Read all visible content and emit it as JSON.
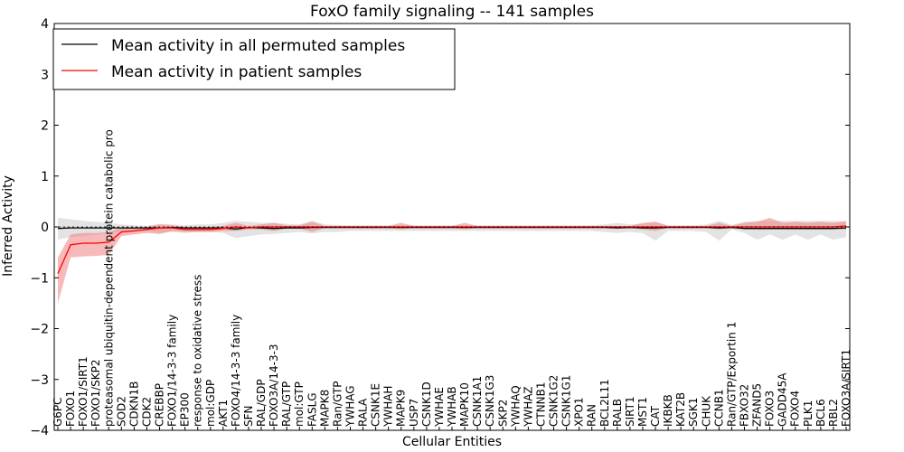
{
  "chart_data": {
    "type": "line",
    "title": "FoxO family signaling -- 141 samples",
    "xlabel": "Cellular Entities",
    "ylabel": "Inferred Activity",
    "ylim": [
      -4,
      4
    ],
    "yticks": [
      4,
      3,
      2,
      1,
      0,
      -1,
      -2,
      -3,
      -4
    ],
    "ytick_labels": [
      "4",
      "3",
      "2",
      "1",
      "0",
      "−1",
      "−2",
      "−3",
      "−4"
    ],
    "legend_location": "upper-left",
    "categories": [
      "G6PC",
      "FOXO1",
      "FOXO1/SIRT1",
      "FOXO1/SKP2",
      "proteasomal ubiquitin-dependent protein catabolic pro",
      "SOD2",
      "CDKN1B",
      "CDK2",
      "CREBBP",
      "FOXO1/14-3-3 family",
      "EP300",
      "response to oxidative stress",
      "mol:GDP",
      "AKT1",
      "FOXO4/14-3-3 family",
      "SFN",
      "RAL/GDP",
      "FOXO3A/14-3-3",
      "RAL/GTP",
      "mol:GTP",
      "FASLG",
      "MAPK8",
      "Ran/GTP",
      "YWHAG",
      "RALA",
      "CSNK1E",
      "YWHAH",
      "MAPK9",
      "USP7",
      "CSNK1D",
      "YWHAE",
      "YWHAB",
      "MAPK10",
      "CSNK1A1",
      "CSNK1G3",
      "SKP2",
      "YWHAQ",
      "YWHAZ",
      "CTNNB1",
      "CSNK1G2",
      "CSNK1G1",
      "XPO1",
      "RAN",
      "BCL2L11",
      "RALB",
      "SIRT1",
      "MST1",
      "CAT",
      "IKBKB",
      "KAT2B",
      "SGK1",
      "CHUK",
      "CCNB1",
      "Ran/GTP/Exportin 1",
      "FBXO32",
      "ZFAND5",
      "FOXO3",
      "GADD45A",
      "FOXO4",
      "PLK1",
      "BCL6",
      "RBL2",
      "FOXO3A/SIRT1"
    ],
    "series": [
      {
        "name": "Mean activity in all permuted samples",
        "color": "#000000",
        "band_color": "#b0b0b0",
        "values": [
          -0.03,
          -0.02,
          -0.02,
          -0.02,
          -0.02,
          -0.02,
          -0.02,
          -0.02,
          -0.02,
          -0.01,
          -0.02,
          -0.02,
          -0.02,
          -0.02,
          -0.04,
          -0.01,
          -0.02,
          -0.03,
          -0.02,
          -0.02,
          -0.01,
          -0.01,
          -0.01,
          -0.01,
          -0.01,
          -0.01,
          -0.01,
          -0.01,
          -0.01,
          -0.01,
          -0.01,
          -0.01,
          -0.01,
          -0.01,
          -0.01,
          -0.01,
          -0.01,
          -0.01,
          -0.01,
          -0.01,
          -0.01,
          -0.01,
          -0.01,
          -0.01,
          -0.02,
          -0.01,
          -0.02,
          -0.02,
          -0.01,
          -0.01,
          -0.01,
          -0.01,
          -0.02,
          -0.01,
          -0.03,
          -0.03,
          -0.03,
          -0.03,
          -0.03,
          -0.03,
          -0.03,
          -0.03,
          -0.02
        ],
        "lower": [
          -0.25,
          -0.2,
          -0.18,
          -0.15,
          -0.12,
          -0.1,
          -0.08,
          -0.08,
          -0.12,
          -0.1,
          -0.12,
          -0.1,
          -0.1,
          -0.12,
          -0.22,
          -0.18,
          -0.15,
          -0.14,
          -0.12,
          -0.1,
          -0.13,
          -0.1,
          -0.1,
          -0.08,
          -0.08,
          -0.08,
          -0.08,
          -0.08,
          -0.08,
          -0.08,
          -0.08,
          -0.08,
          -0.08,
          -0.08,
          -0.08,
          -0.08,
          -0.08,
          -0.08,
          -0.08,
          -0.08,
          -0.08,
          -0.08,
          -0.08,
          -0.1,
          -0.12,
          -0.1,
          -0.12,
          -0.27,
          -0.08,
          -0.08,
          -0.08,
          -0.1,
          -0.27,
          -0.05,
          -0.12,
          -0.25,
          -0.15,
          -0.25,
          -0.15,
          -0.25,
          -0.15,
          -0.25,
          -0.2
        ],
        "upper": [
          0.18,
          0.15,
          0.12,
          0.1,
          0.08,
          0.05,
          0.03,
          0.02,
          0.06,
          0.05,
          0.03,
          0.05,
          0.05,
          0.08,
          0.12,
          0.1,
          0.08,
          0.08,
          0.06,
          0.05,
          0.12,
          0.05,
          0.04,
          0.03,
          0.03,
          0.03,
          0.03,
          0.03,
          0.03,
          0.03,
          0.03,
          0.03,
          0.03,
          0.03,
          0.03,
          0.03,
          0.03,
          0.03,
          0.03,
          0.03,
          0.03,
          0.03,
          0.03,
          0.05,
          0.08,
          0.05,
          0.06,
          0.1,
          0.03,
          0.03,
          0.03,
          0.05,
          0.12,
          0.04,
          0.1,
          0.12,
          0.12,
          0.12,
          0.12,
          0.12,
          0.12,
          0.12,
          0.1
        ]
      },
      {
        "name": "Mean activity in patient samples",
        "color": "#ff0000",
        "band_color": "#f08080",
        "values": [
          -0.92,
          -0.35,
          -0.32,
          -0.32,
          -0.3,
          -0.1,
          -0.08,
          -0.05,
          -0.02,
          -0.02,
          -0.05,
          -0.05,
          -0.05,
          -0.03,
          0.0,
          -0.02,
          0.0,
          0.0,
          0.0,
          0.0,
          0.0,
          0.0,
          0.0,
          0.0,
          0.0,
          0.0,
          0.0,
          0.0,
          0.0,
          0.0,
          0.0,
          0.0,
          0.0,
          0.0,
          0.0,
          0.0,
          0.0,
          0.0,
          0.0,
          0.0,
          0.0,
          0.0,
          0.0,
          0.0,
          0.0,
          0.0,
          0.0,
          0.0,
          0.0,
          0.0,
          0.0,
          0.0,
          0.0,
          0.0,
          0.0,
          0.0,
          0.0,
          0.0,
          0.0,
          0.0,
          0.0,
          0.0,
          0.02
        ],
        "lower": [
          -1.5,
          -0.6,
          -0.58,
          -0.57,
          -0.55,
          -0.18,
          -0.15,
          -0.12,
          -0.14,
          -0.08,
          -0.1,
          -0.1,
          -0.1,
          -0.08,
          -0.08,
          -0.05,
          -0.05,
          -0.08,
          -0.03,
          -0.03,
          -0.1,
          -0.02,
          -0.02,
          -0.02,
          -0.02,
          -0.02,
          -0.02,
          -0.05,
          -0.02,
          -0.02,
          -0.02,
          -0.02,
          -0.05,
          -0.02,
          -0.02,
          -0.02,
          -0.02,
          -0.02,
          -0.02,
          -0.02,
          -0.02,
          -0.02,
          -0.02,
          -0.02,
          -0.02,
          -0.02,
          -0.05,
          -0.08,
          -0.02,
          -0.02,
          -0.02,
          -0.02,
          -0.05,
          -0.02,
          -0.05,
          -0.05,
          -0.05,
          -0.05,
          -0.05,
          -0.05,
          -0.05,
          -0.05,
          -0.05
        ],
        "upper": [
          -0.6,
          -0.15,
          -0.12,
          -0.12,
          -0.1,
          -0.02,
          -0.02,
          0.0,
          0.05,
          0.03,
          0.0,
          0.0,
          0.0,
          0.02,
          0.08,
          0.02,
          0.05,
          0.08,
          0.03,
          0.03,
          0.1,
          0.02,
          0.02,
          0.02,
          0.02,
          0.02,
          0.02,
          0.08,
          0.02,
          0.02,
          0.02,
          0.02,
          0.08,
          0.02,
          0.02,
          0.02,
          0.02,
          0.02,
          0.02,
          0.02,
          0.02,
          0.02,
          0.02,
          0.02,
          0.02,
          0.02,
          0.08,
          0.1,
          0.02,
          0.02,
          0.02,
          0.02,
          0.08,
          0.02,
          0.08,
          0.1,
          0.18,
          0.08,
          0.1,
          0.08,
          0.1,
          0.08,
          0.12
        ]
      }
    ]
  }
}
